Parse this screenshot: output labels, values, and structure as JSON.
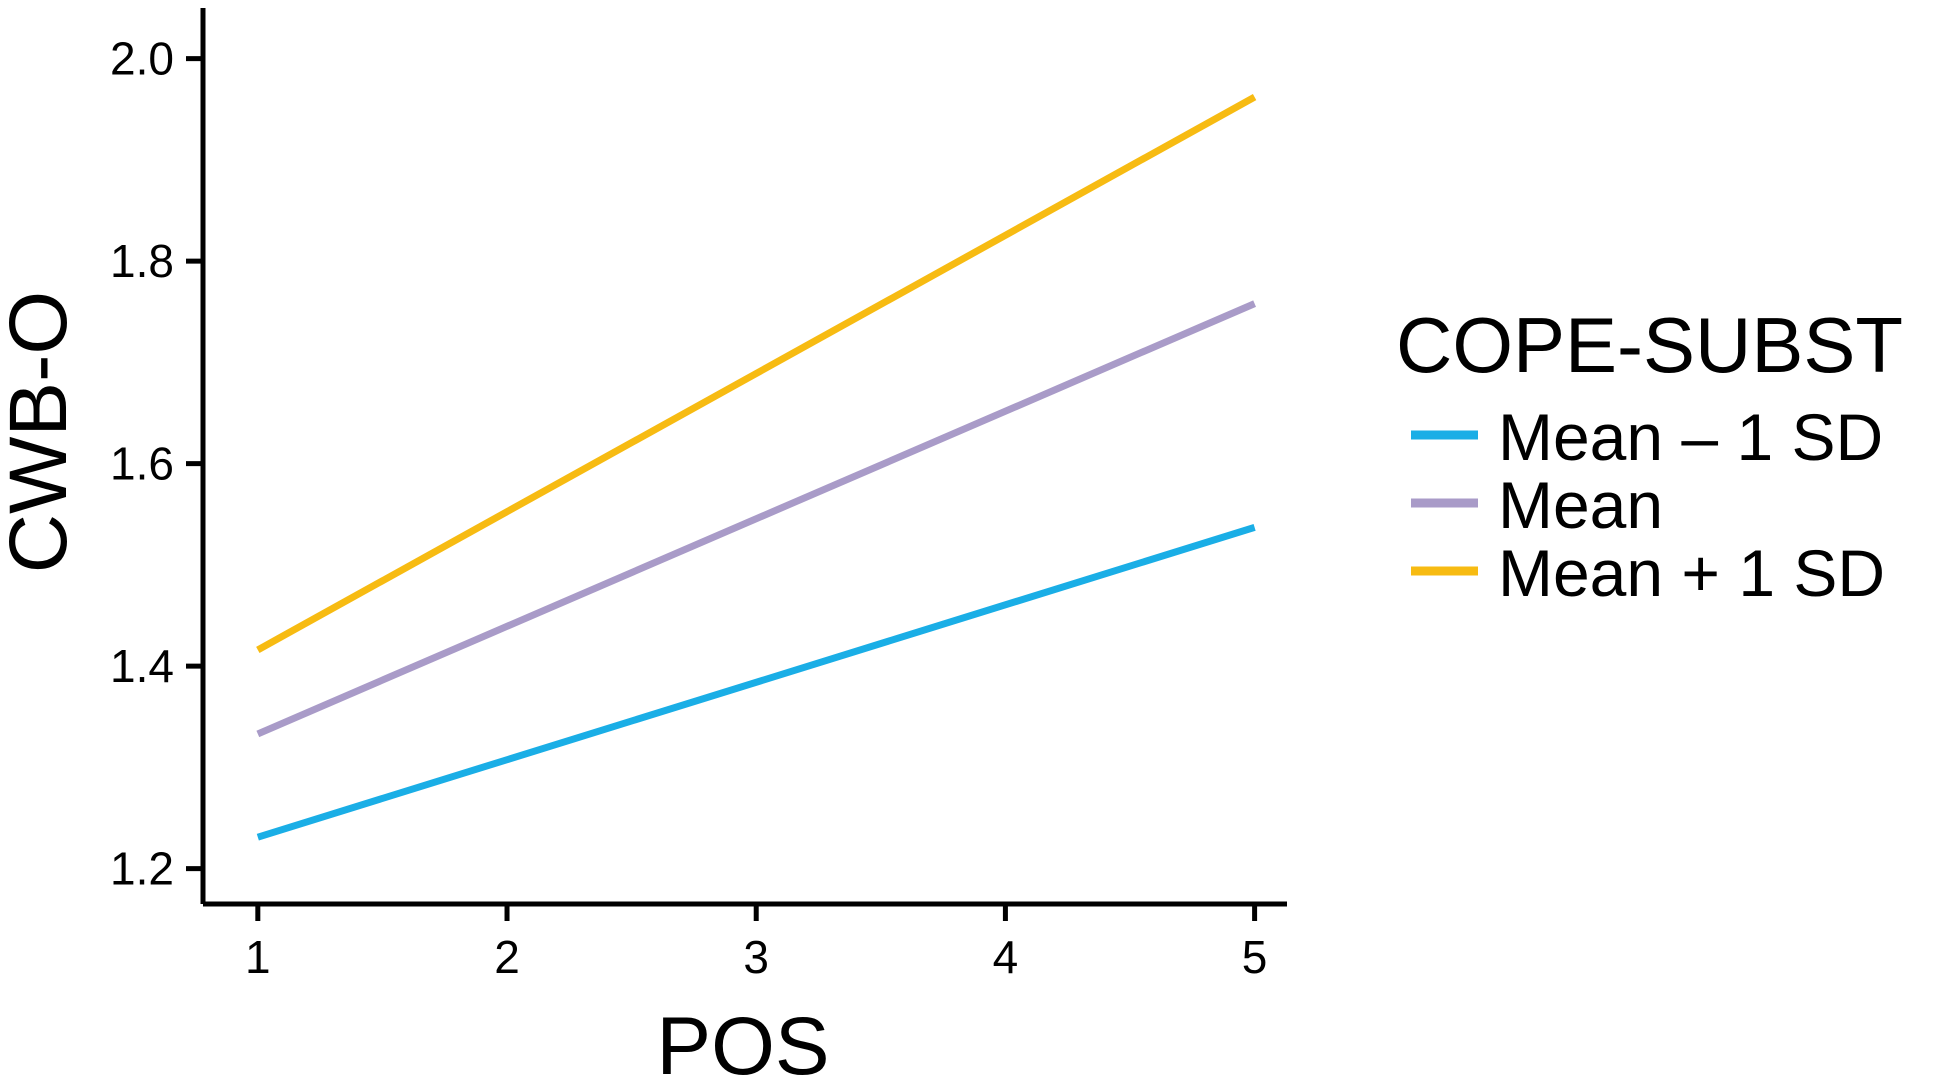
{
  "chart_data": {
    "type": "line",
    "xlabel": "POS",
    "ylabel": "CWB-O",
    "x": [
      1,
      5
    ],
    "xlim": [
      0.78,
      5.13
    ],
    "ylim": [
      1.165,
      2.05
    ],
    "xticks": [
      1,
      2,
      3,
      4,
      5
    ],
    "yticks": [
      1.2,
      1.4,
      1.6,
      1.8,
      2.0
    ],
    "ytick_labels": [
      "1.2",
      "1.4",
      "1.6",
      "1.8",
      "2.0"
    ],
    "xtick_labels": [
      "1",
      "2",
      "3",
      "4",
      "5"
    ],
    "grid": false,
    "legend": {
      "title": "COPE-SUBST",
      "position": "right"
    },
    "series": [
      {
        "name": "Mean – 1 SD",
        "values": [
          1.231,
          1.537
        ],
        "color": "#1aaee6"
      },
      {
        "name": "Mean",
        "values": [
          1.333,
          1.758
        ],
        "color": "#a99bc8"
      },
      {
        "name": "Mean + 1 SD",
        "values": [
          1.416,
          1.962
        ],
        "color": "#f7bb12"
      }
    ]
  }
}
